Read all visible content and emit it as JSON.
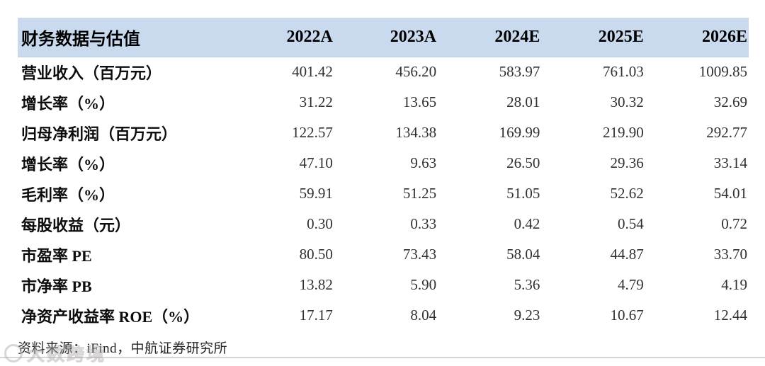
{
  "table": {
    "header": {
      "label": "财务数据与估值",
      "columns": [
        "2022A",
        "2023A",
        "2024E",
        "2025E",
        "2026E"
      ]
    },
    "rows": [
      {
        "label": "营业收入（百万元）",
        "values": [
          "401.42",
          "456.20",
          "583.97",
          "761.03",
          "1009.85"
        ]
      },
      {
        "label": "增长率（%）",
        "values": [
          "31.22",
          "13.65",
          "28.01",
          "30.32",
          "32.69"
        ]
      },
      {
        "label": "归母净利润（百万元）",
        "values": [
          "122.57",
          "134.38",
          "169.99",
          "219.90",
          "292.77"
        ]
      },
      {
        "label": "增长率（%）",
        "values": [
          "47.10",
          "9.63",
          "26.50",
          "29.36",
          "33.14"
        ]
      },
      {
        "label": "毛利率（%）",
        "values": [
          "59.91",
          "51.25",
          "51.05",
          "52.62",
          "54.01"
        ]
      },
      {
        "label": "每股收益（元）",
        "values": [
          "0.30",
          "0.33",
          "0.42",
          "0.54",
          "0.72"
        ]
      },
      {
        "label": "市盈率 PE",
        "values": [
          "80.50",
          "73.43",
          "58.04",
          "44.87",
          "33.70"
        ]
      },
      {
        "label": "市净率 PB",
        "values": [
          "13.82",
          "5.90",
          "5.36",
          "4.79",
          "4.19"
        ]
      },
      {
        "label": "净资产收益率 ROE（%）",
        "values": [
          "17.17",
          "8.04",
          "9.23",
          "10.67",
          "12.44"
        ]
      }
    ],
    "source": "资料来源：iFind，中航证券研究所"
  },
  "watermark": {
    "text": "大数跨境"
  },
  "colors": {
    "header_bg": "#c9daef",
    "label_text": "#0d0d0d",
    "value_text": "#303030"
  },
  "chart_data": {
    "type": "table",
    "title": "财务数据与估值",
    "categories": [
      "2022A",
      "2023A",
      "2024E",
      "2025E",
      "2026E"
    ],
    "series": [
      {
        "name": "营业收入（百万元）",
        "values": [
          401.42,
          456.2,
          583.97,
          761.03,
          1009.85
        ]
      },
      {
        "name": "增长率（%）",
        "values": [
          31.22,
          13.65,
          28.01,
          30.32,
          32.69
        ]
      },
      {
        "name": "归母净利润（百万元）",
        "values": [
          122.57,
          134.38,
          169.99,
          219.9,
          292.77
        ]
      },
      {
        "name": "增长率（%）",
        "values": [
          47.1,
          9.63,
          26.5,
          29.36,
          33.14
        ]
      },
      {
        "name": "毛利率（%）",
        "values": [
          59.91,
          51.25,
          51.05,
          52.62,
          54.01
        ]
      },
      {
        "name": "每股收益（元）",
        "values": [
          0.3,
          0.33,
          0.42,
          0.54,
          0.72
        ]
      },
      {
        "name": "市盈率 PE",
        "values": [
          80.5,
          73.43,
          58.04,
          44.87,
          33.7
        ]
      },
      {
        "name": "市净率 PB",
        "values": [
          13.82,
          5.9,
          5.36,
          4.79,
          4.19
        ]
      },
      {
        "name": "净资产收益率 ROE（%）",
        "values": [
          17.17,
          8.04,
          9.23,
          10.67,
          12.44
        ]
      }
    ]
  }
}
